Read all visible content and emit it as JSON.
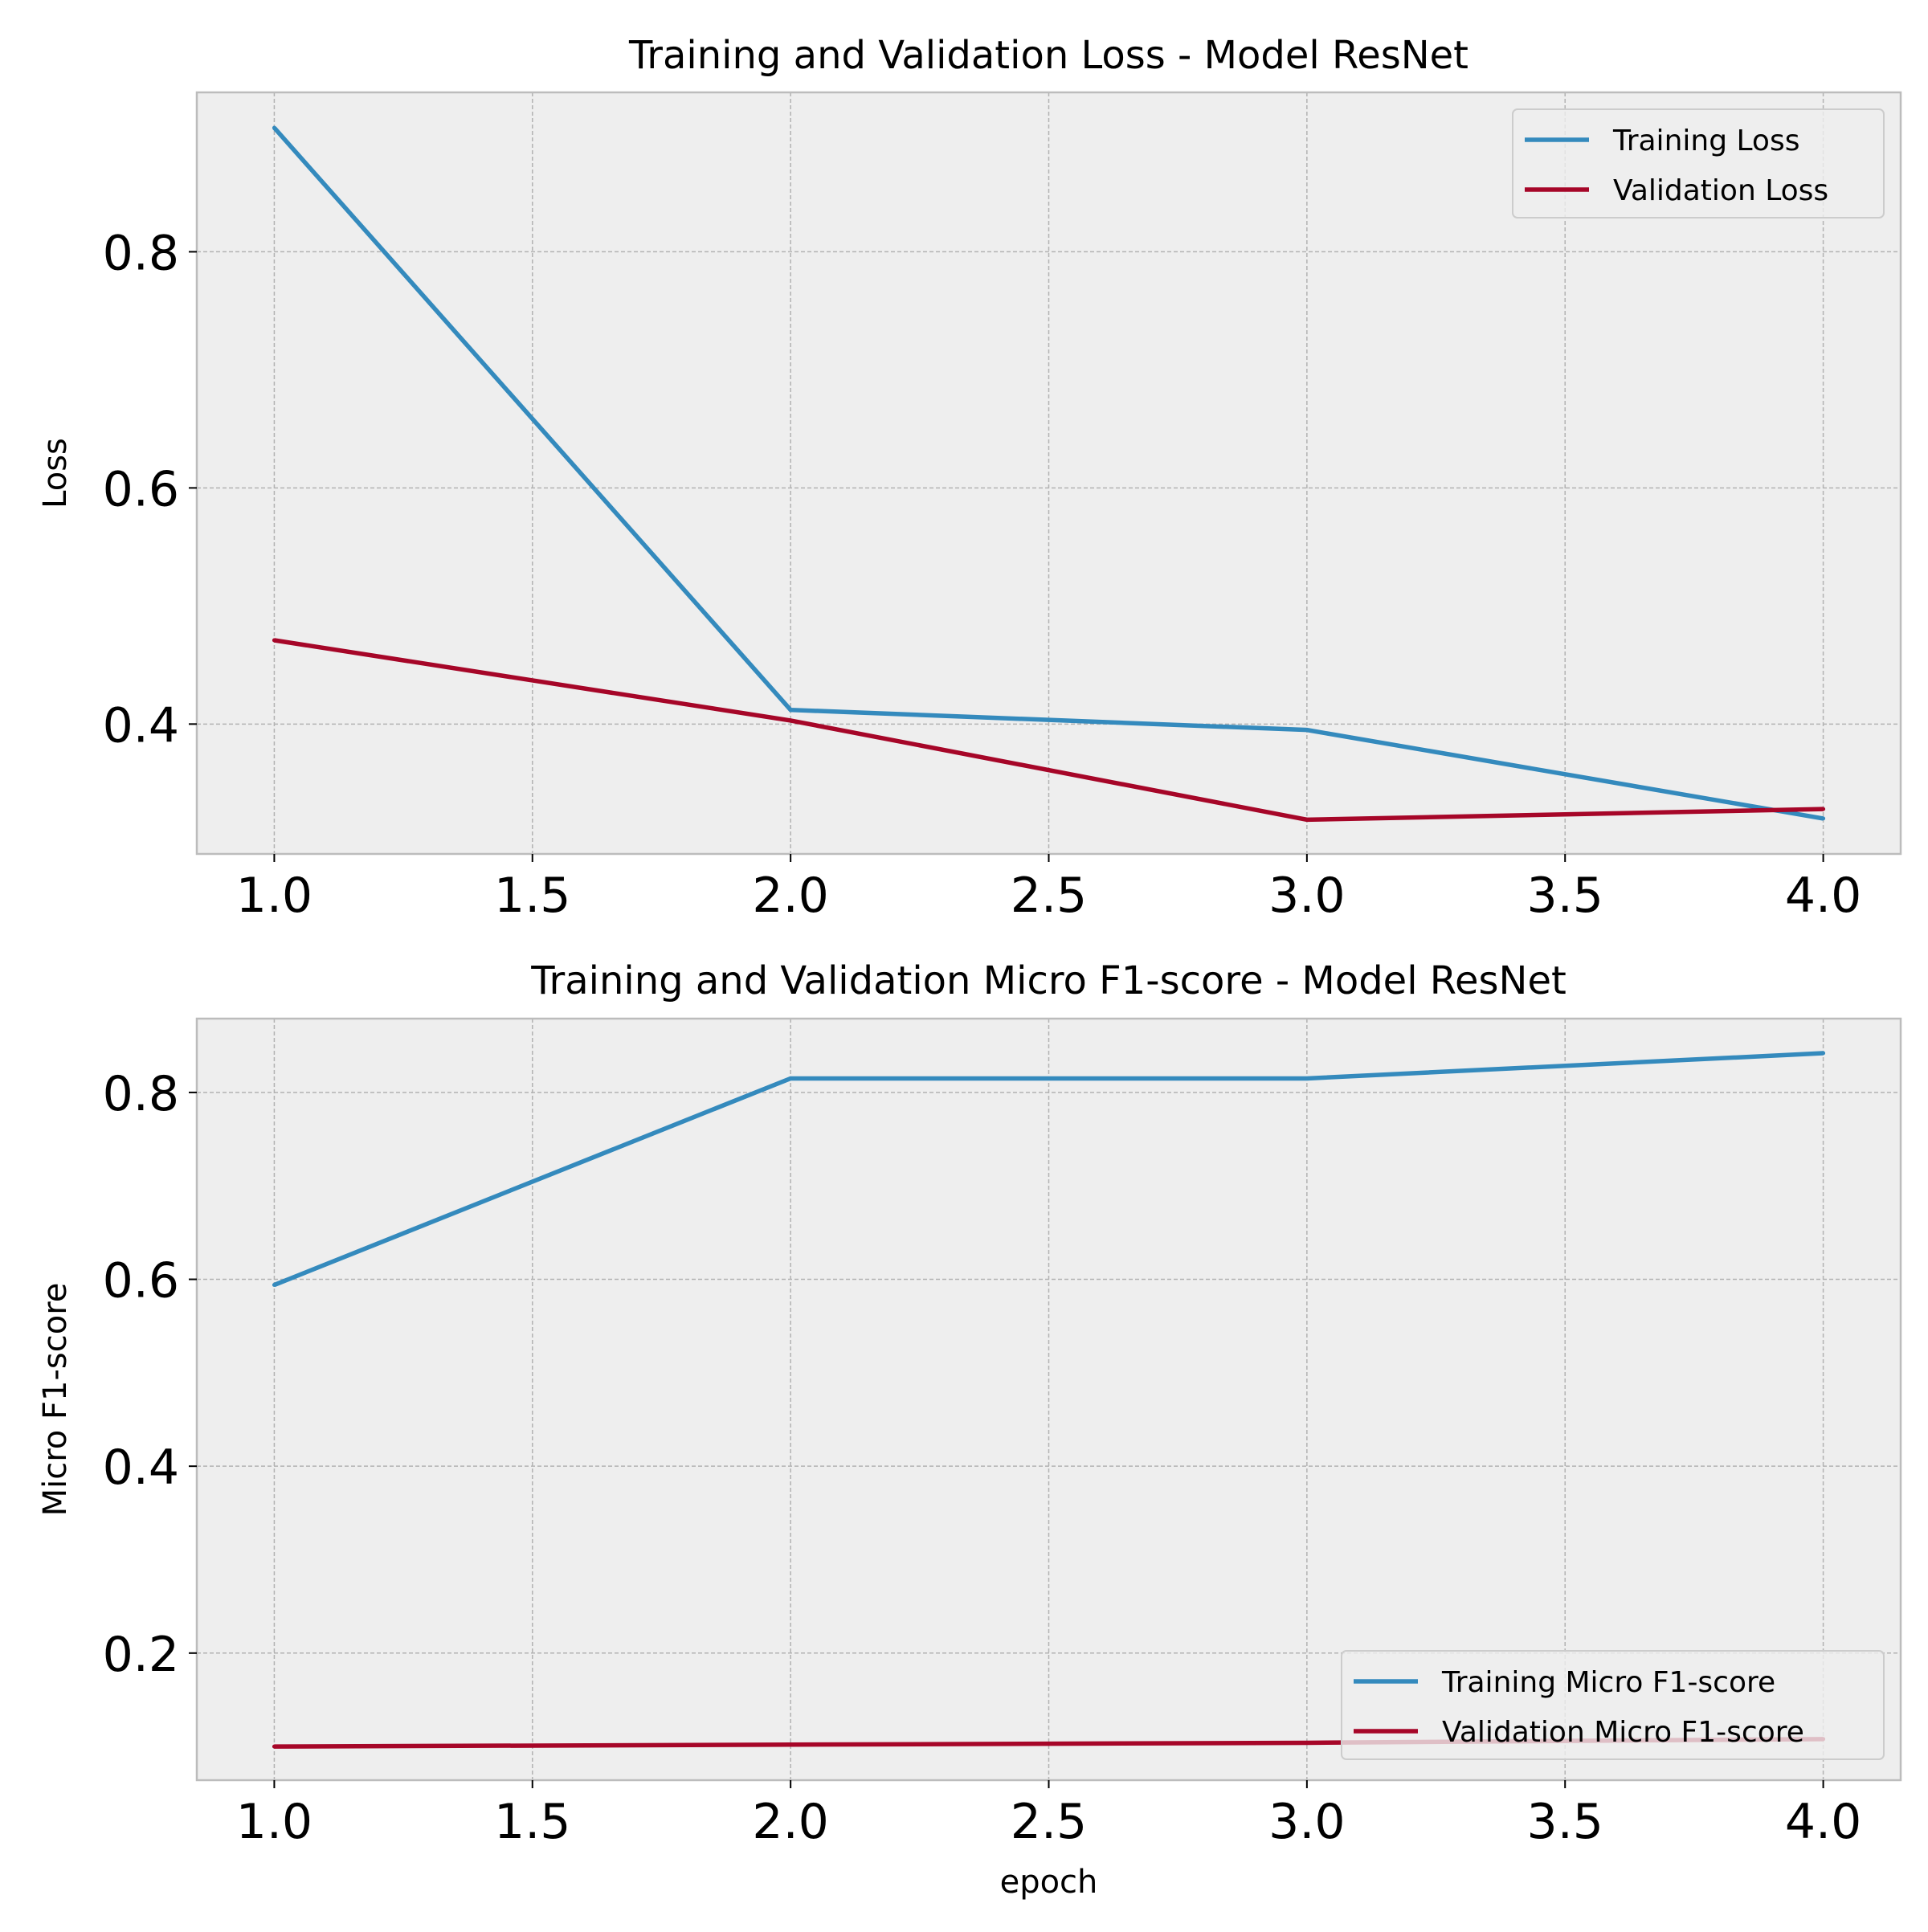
{
  "chart_data": [
    {
      "type": "line",
      "title": "Training and Validation Loss - Model ResNet",
      "xlabel": "",
      "ylabel": "Loss",
      "x": [
        1.0,
        2.0,
        3.0,
        4.0
      ],
      "xlim": [
        0.85,
        4.15
      ],
      "ylim": [
        0.29,
        0.935
      ],
      "xticks": [
        "1.0",
        "1.5",
        "2.0",
        "2.5",
        "3.0",
        "3.5",
        "4.0"
      ],
      "yticks": [
        "0.4",
        "0.6",
        "0.8"
      ],
      "grid": true,
      "legend_position": "top-right",
      "series": [
        {
          "name": "Training Loss",
          "color": "#348abd",
          "values": [
            0.905,
            0.412,
            0.395,
            0.32
          ]
        },
        {
          "name": "Validation Loss",
          "color": "#a60628",
          "values": [
            0.471,
            0.403,
            0.319,
            0.328
          ]
        }
      ]
    },
    {
      "type": "line",
      "title": "Training and Validation Micro F1-score - Model ResNet",
      "xlabel": "epoch",
      "ylabel": "Micro F1-score",
      "x": [
        1.0,
        2.0,
        3.0,
        4.0
      ],
      "xlim": [
        0.85,
        4.15
      ],
      "ylim": [
        0.064,
        0.879
      ],
      "xticks": [
        "1.0",
        "1.5",
        "2.0",
        "2.5",
        "3.0",
        "3.5",
        "4.0"
      ],
      "yticks": [
        "0.2",
        "0.4",
        "0.6",
        "0.8"
      ],
      "grid": true,
      "legend_position": "bottom-right",
      "series": [
        {
          "name": "Training Micro F1-score",
          "color": "#348abd",
          "values": [
            0.594,
            0.815,
            0.815,
            0.842
          ]
        },
        {
          "name": "Validation Micro F1-score",
          "color": "#a60628",
          "values": [
            0.1,
            0.102,
            0.104,
            0.108
          ]
        }
      ]
    }
  ]
}
